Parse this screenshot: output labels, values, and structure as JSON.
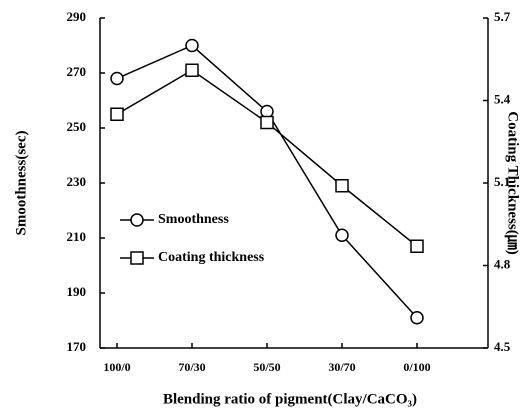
{
  "chart_data": {
    "type": "line",
    "xlabel": "Blending ratio of pigment(Clay/CaCO₃)",
    "ylabel": "Smoothness(sec)",
    "y2label": "Coating Thickness(㎛)",
    "categories": [
      "100/0",
      "70/30",
      "50/50",
      "30/70",
      "0/100"
    ],
    "series": [
      {
        "name": "Smoothness",
        "color": "#000000",
        "marker": "circle",
        "values": [
          268,
          280,
          256,
          211,
          181
        ]
      },
      {
        "name": "Coating thickness",
        "color": "#000000",
        "marker": "square",
        "axis": "y2",
        "values": [
          5.35,
          5.51,
          5.32,
          5.09,
          4.87
        ]
      }
    ],
    "ylim": [
      170,
      290
    ],
    "yticks": [
      170,
      190,
      210,
      230,
      250,
      270,
      290
    ],
    "y2lim": [
      4.5,
      5.7
    ],
    "y2ticks": [
      {
        "value": 4.5,
        "label": "4.5"
      },
      {
        "value": 4.8,
        "label": "4.8"
      },
      {
        "value": 5.1,
        "label": "5.1"
      },
      {
        "value": 5.4,
        "label": "5.4"
      },
      {
        "value": 5.7,
        "label": "5.7"
      }
    ],
    "legend": "center left",
    "grid": false
  }
}
